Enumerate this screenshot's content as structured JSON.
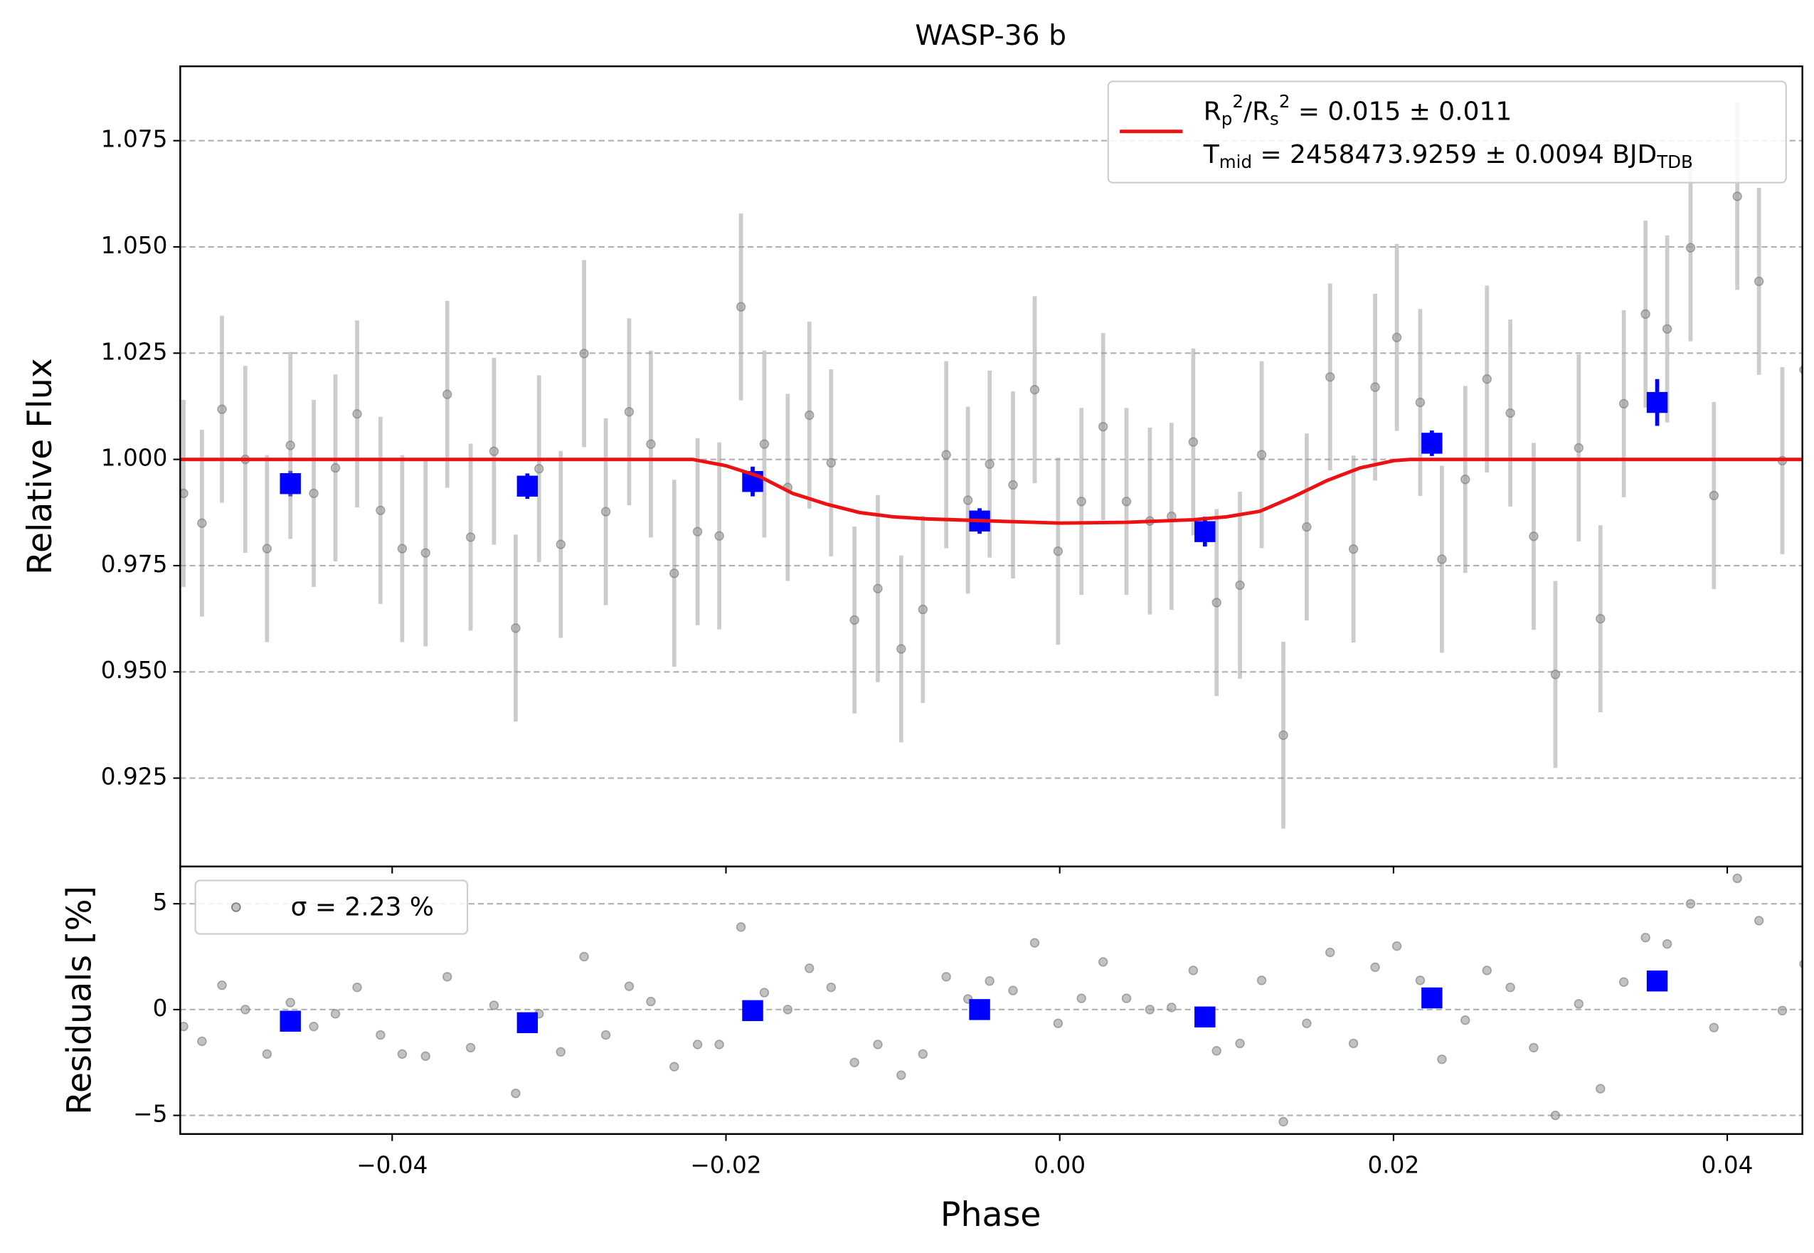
{
  "chart_data": [
    {
      "type": "errorbar",
      "title": "WASP-36 b",
      "y_label": "Relative Flux",
      "xlim": [
        -0.0527,
        0.0445
      ],
      "ylim": [
        0.9042,
        1.0925
      ],
      "yticks": [
        0.925,
        {
          "value": 0.95,
          "label": "0.950"
        },
        0.975,
        {
          "value": 1.0,
          "label": "1.000"
        },
        1.025,
        {
          "value": 1.05,
          "label": "1.050"
        },
        1.075
      ],
      "grid": true,
      "legend": "upper right",
      "series": [
        {
          "marker": "o",
          "color": "#999999",
          "error": 0.022,
          "x": [
            -0.0525,
            -0.0514,
            -0.0502,
            -0.0488,
            -0.0475,
            -0.0461,
            -0.0447,
            -0.0434,
            -0.0421,
            -0.0407,
            -0.0394,
            -0.038,
            -0.0367,
            -0.0353,
            -0.0339,
            -0.0326,
            -0.0312,
            -0.0299,
            -0.0285,
            -0.0272,
            -0.0258,
            -0.0245,
            -0.0231,
            -0.0217,
            -0.0204,
            -0.0191,
            -0.0177,
            -0.0163,
            -0.015,
            -0.0137,
            -0.0123,
            -0.0109,
            -0.0095,
            -0.0082,
            -0.0068,
            -0.0055,
            -0.0042,
            -0.0028,
            -0.0015,
            -0.0001,
            0.0013,
            0.0026,
            0.004,
            0.0054,
            0.0067,
            0.008,
            0.0094,
            0.0108,
            0.0121,
            0.0134,
            0.0148,
            0.0162,
            0.0176,
            0.0189,
            0.0202,
            0.0216,
            0.0229,
            0.0243,
            0.0256,
            0.027,
            0.0284,
            0.0297,
            0.0311,
            0.0324,
            0.0338,
            0.0351,
            0.0364,
            0.0378,
            0.0392,
            0.0406,
            0.0419,
            0.0433,
            0.0446
          ],
          "values": [
            0.992,
            0.985,
            1.0118,
            1.0,
            0.979,
            1.0033,
            0.992,
            0.998,
            1.0107,
            0.988,
            0.979,
            0.978,
            1.0153,
            0.9817,
            1.0019,
            0.9603,
            0.9978,
            0.98,
            1.0249,
            0.9877,
            1.0112,
            1.0036,
            0.9732,
            0.983,
            0.982,
            1.0359,
            1.0036,
            0.9934,
            1.0104,
            0.9992,
            0.9622,
            0.9696,
            0.9554,
            0.9647,
            1.0011,
            0.9904,
            0.9989,
            0.994,
            1.0164,
            0.9784,
            0.9901,
            1.0077,
            0.9901,
            0.9855,
            0.9866,
            1.0041,
            0.9663,
            0.9704,
            1.0011,
            0.9351,
            0.9841,
            1.0194,
            0.9789,
            1.017,
            1.0287,
            1.0134,
            0.9765,
            0.9953,
            1.0189,
            1.0109,
            0.9819,
            0.9494,
            1.0027,
            0.9625,
            1.0131,
            1.0342,
            1.0307,
            1.0498,
            0.9915,
            1.0619,
            1.0419,
            0.9997,
            1.0211
          ]
        },
        {
          "marker": "s",
          "color": "#0000ff",
          "x": [
            -0.0461,
            -0.0319,
            -0.0184,
            -0.0048,
            0.0087,
            0.0223,
            0.0358
          ],
          "values": [
            0.9943,
            0.9937,
            0.9948,
            0.9855,
            0.983,
            1.0038,
            1.0134
          ],
          "errors": [
            0.003,
            0.003,
            0.0035,
            0.003,
            0.0035,
            0.003,
            0.0055
          ]
        },
        {
          "marker": "line",
          "color": "#ee1111",
          "name": [
            "R_{p}^{2}/R_{s}^{2} = 0.015 ± 0.011",
            "T_{mid} = 2458473.9259 ± 0.0094 BJD_{TDB}"
          ],
          "x": [
            -0.0527,
            -0.022,
            -0.02,
            -0.018,
            -0.016,
            -0.014,
            -0.012,
            -0.01,
            -0.008,
            -0.004,
            0,
            0.004,
            0.008,
            0.01,
            0.012,
            0.014,
            0.016,
            0.018,
            0.02,
            0.021,
            0.0445
          ],
          "values": [
            1,
            1,
            0.9985,
            0.996,
            0.992,
            0.9895,
            0.9875,
            0.9865,
            0.986,
            0.9855,
            0.985,
            0.9852,
            0.9858,
            0.9865,
            0.9878,
            0.9912,
            0.995,
            0.998,
            0.9997,
            1,
            1
          ]
        }
      ]
    },
    {
      "type": "scatter",
      "x_label": "Phase",
      "y_label": "Residuals [%]",
      "xlim": [
        -0.0527,
        0.0445
      ],
      "ylim": [
        -5.88,
        6.76
      ],
      "xticks": [
        {
          "value": -0.04,
          "label": "−0.04"
        },
        {
          "value": -0.02,
          "label": "−0.02"
        },
        {
          "value": 0,
          "label": "0.00"
        },
        0.02,
        0.04
      ],
      "yticks": [
        {
          "value": -5,
          "label": "−5"
        },
        0,
        5
      ],
      "grid": true,
      "legend": "upper left",
      "series": [
        {
          "marker": "o",
          "color": "#999999",
          "name": "σ = 2.23 %",
          "x": [
            -0.0525,
            -0.0514,
            -0.0502,
            -0.0488,
            -0.0475,
            -0.0461,
            -0.0447,
            -0.0434,
            -0.0421,
            -0.0407,
            -0.0394,
            -0.038,
            -0.0367,
            -0.0353,
            -0.0339,
            -0.0326,
            -0.0312,
            -0.0299,
            -0.0285,
            -0.0272,
            -0.0258,
            -0.0245,
            -0.0231,
            -0.0217,
            -0.0204,
            -0.0191,
            -0.0177,
            -0.0163,
            -0.015,
            -0.0137,
            -0.0123,
            -0.0109,
            -0.0095,
            -0.0082,
            -0.0068,
            -0.0055,
            -0.0042,
            -0.0028,
            -0.0015,
            -0.0001,
            0.0013,
            0.0026,
            0.004,
            0.0054,
            0.0067,
            0.008,
            0.0094,
            0.0108,
            0.0121,
            0.0134,
            0.0148,
            0.0162,
            0.0176,
            0.0189,
            0.0202,
            0.0216,
            0.0229,
            0.0243,
            0.0256,
            0.027,
            0.0284,
            0.0297,
            0.0311,
            0.0324,
            0.0338,
            0.0351,
            0.0364,
            0.0378,
            0.0392,
            0.0406,
            0.0419,
            0.0433,
            0.0446
          ],
          "values": [
            -0.8,
            -1.5,
            1.15,
            0,
            -2.1,
            0.33,
            -0.8,
            -0.2,
            1.05,
            -1.2,
            -2.1,
            -2.2,
            1.55,
            -1.8,
            0.2,
            -3.96,
            -0.2,
            -2,
            2.5,
            -1.2,
            1.1,
            0.38,
            -2.7,
            -1.65,
            -1.65,
            3.9,
            0.8,
            0,
            1.95,
            1.05,
            -2.5,
            -1.65,
            -3.1,
            -2.1,
            1.55,
            0.5,
            1.35,
            0.9,
            3.15,
            -0.65,
            0.53,
            2.25,
            0.53,
            0,
            0.1,
            1.85,
            -1.95,
            -1.6,
            1.38,
            -5.3,
            -0.65,
            2.7,
            -1.6,
            2,
            3,
            1.38,
            -2.35,
            -0.5,
            1.85,
            1.05,
            -1.8,
            -5,
            0.27,
            -3.74,
            1.3,
            3.4,
            3.1,
            5,
            -0.85,
            6.2,
            4.2,
            -0.05,
            2.15
          ]
        },
        {
          "marker": "s",
          "color": "#0000ff",
          "x": [
            -0.0461,
            -0.0319,
            -0.0184,
            -0.0048,
            0.0087,
            0.0223,
            0.0358
          ],
          "values": [
            -0.55,
            -0.62,
            -0.05,
            0,
            -0.35,
            0.55,
            1.35
          ]
        }
      ]
    }
  ]
}
